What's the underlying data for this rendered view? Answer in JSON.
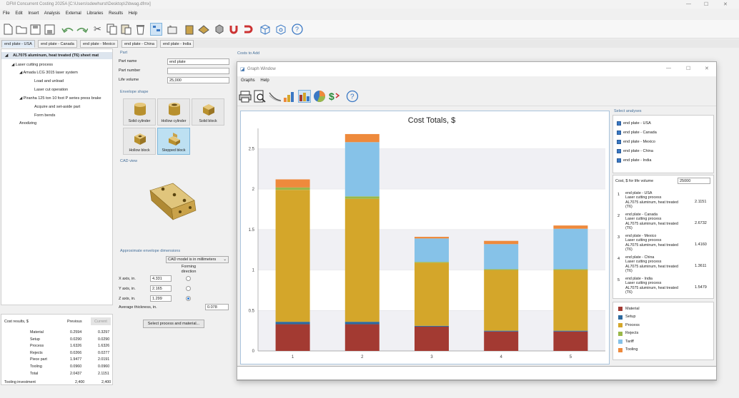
{
  "app": {
    "title": "DFM Concurrent Costing 2025A [C:\\Users\\sdewhurst\\Desktop\\2\\bwag.dfmx]"
  },
  "menu": [
    "File",
    "Edit",
    "Insert",
    "Analysis",
    "External",
    "Libraries",
    "Results",
    "Help"
  ],
  "tabs": [
    "end plate - USA",
    "end plate - Canada",
    "end plate - Mexico",
    "end plate - China",
    "end plate - India"
  ],
  "tree": {
    "root": "AL7075 aluminum, heat treated (T6) sheet mat",
    "items": [
      "Laser cutting process",
      "Amada LCG 3015 laser system",
      "Load and unload",
      "Laser cut operation",
      "Piranha 125 ton 10 foot P series press brake",
      "Acquire and set-aside part",
      "Form bends",
      "Anodizing"
    ]
  },
  "results": {
    "title": "Cost results, $",
    "col_prev": "Previous",
    "col_cur": "Current",
    "rows": [
      {
        "label": "Material",
        "prev": "0.2594",
        "cur": "0.3297"
      },
      {
        "label": "Setup",
        "prev": "0.0290",
        "cur": "0.0290"
      },
      {
        "label": "Process",
        "prev": "1.6326",
        "cur": "1.6326"
      },
      {
        "label": "Rejects",
        "prev": "0.0266",
        "cur": "0.0277"
      },
      {
        "label": "Piece part",
        "prev": "1.9477",
        "cur": "2.0191"
      },
      {
        "label": "Tooling",
        "prev": "0.0960",
        "cur": "0.0960"
      },
      {
        "label": "Total",
        "prev": "2.0437",
        "cur": "2.1151"
      }
    ],
    "tooling_label": "Tooling investment",
    "tooling_prev": "2,400",
    "tooling_cur": "2,400"
  },
  "part": {
    "section": "Part",
    "name_label": "Part name",
    "name_value": "end plate",
    "number_label": "Part number",
    "number_value": "",
    "life_label": "Life volume",
    "life_value": "25,000"
  },
  "envelope": {
    "section": "Envelope shape",
    "shapes": [
      "Solid cylinder",
      "Hollow cylinder",
      "Solid block",
      "Hollow block",
      "Stepped block"
    ]
  },
  "cad": {
    "section": "CAD view"
  },
  "dims": {
    "section": "Approximate envelope dimensions",
    "units": "CAD model is in millimeters",
    "forming_label": "Forming direction",
    "x_label": "X axis, in.",
    "x_value": "4.331",
    "y_label": "Y axis, in.",
    "y_value": "2.165",
    "z_label": "Z axis, in.",
    "z_value": "1.299",
    "thick_label": "Average thickness, in.",
    "thick_value": "0.078",
    "button": "Select process and material..."
  },
  "costs_to_add": "Costs to Add",
  "graph": {
    "window_title": "Graph Window",
    "menu": [
      "Graphs",
      "Help"
    ],
    "select_label": "Select analyses",
    "analyses": [
      "end plate - USA",
      "end plate - Canada",
      "end plate - Mexico",
      "end plate - China",
      "end plate - India"
    ],
    "life_label": "Cost, $ for life volume",
    "life_value": "25000",
    "entries": [
      {
        "num": "1",
        "lines": [
          "end plate - USA",
          "Laser cutting process",
          "AL7075 aluminum, heat treated",
          "(T6)"
        ],
        "value": "2.1151"
      },
      {
        "num": "2",
        "lines": [
          "end plate - Canada",
          "Laser cutting process",
          "AL7075 aluminum, heat treated",
          "(T6)"
        ],
        "value": "2.6732"
      },
      {
        "num": "3",
        "lines": [
          "end plate - Mexico",
          "Laser cutting process",
          "AL7075 aluminum, heat treated",
          "(T6)"
        ],
        "value": "1.4160"
      },
      {
        "num": "4",
        "lines": [
          "end plate - China",
          "Laser cutting process",
          "AL7075 aluminum, heat treated",
          "(T6)"
        ],
        "value": "1.3611"
      },
      {
        "num": "5",
        "lines": [
          "end plate - India",
          "Laser cutting process",
          "AL7075 aluminum, heat treated",
          "(T6)"
        ],
        "value": "1.5479"
      }
    ],
    "legend": [
      {
        "name": "Material",
        "color": "#a33a32"
      },
      {
        "name": "Setup",
        "color": "#2e6a9e"
      },
      {
        "name": "Process",
        "color": "#d4a62a"
      },
      {
        "name": "Rejects",
        "color": "#9ab84a"
      },
      {
        "name": "Tariff",
        "color": "#86c2e8"
      },
      {
        "name": "Tooling",
        "color": "#ee8a3c"
      }
    ]
  },
  "chart_data": {
    "type": "bar",
    "title": "Cost Totals, $",
    "categories": [
      "1",
      "2",
      "3",
      "4",
      "5"
    ],
    "ylim": [
      0,
      2.75
    ],
    "yticks": [
      "0",
      "0.5",
      "1",
      "1.5",
      "2",
      "2.5"
    ],
    "stacked": true,
    "series": [
      {
        "name": "Material",
        "color": "#a33a32",
        "values": [
          0.33,
          0.33,
          0.3,
          0.24,
          0.24
        ]
      },
      {
        "name": "Setup",
        "color": "#2e6a9e",
        "values": [
          0.03,
          0.03,
          0.01,
          0.01,
          0.01
        ]
      },
      {
        "name": "Process",
        "color": "#d4a62a",
        "values": [
          1.63,
          1.52,
          0.78,
          0.75,
          0.75
        ]
      },
      {
        "name": "Rejects",
        "color": "#9ab84a",
        "values": [
          0.03,
          0.03,
          0.01,
          0.01,
          0.01
        ]
      },
      {
        "name": "Tariff",
        "color": "#86c2e8",
        "values": [
          0,
          0.67,
          0.29,
          0.31,
          0.5
        ]
      },
      {
        "name": "Tooling",
        "color": "#ee8a3c",
        "values": [
          0.1,
          0.1,
          0.02,
          0.04,
          0.04
        ]
      }
    ]
  }
}
